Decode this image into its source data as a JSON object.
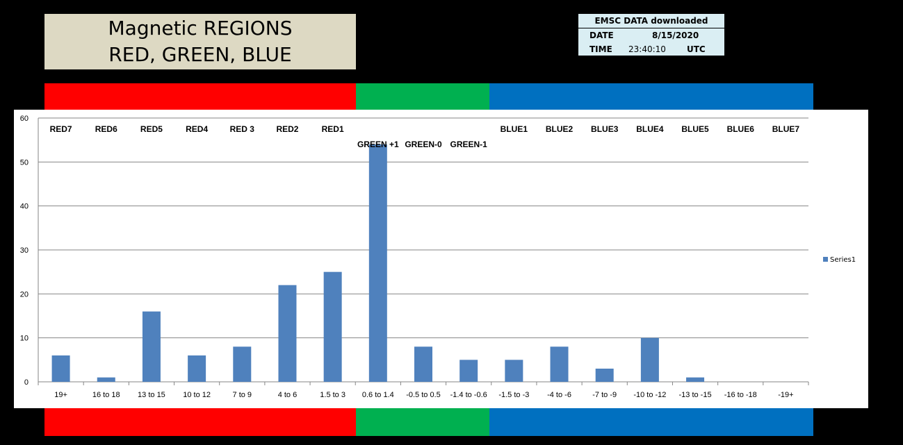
{
  "title": {
    "line1": "Magnetic REGIONS",
    "line2": "RED, GREEN, BLUE"
  },
  "info": {
    "header": "EMSC DATA downloaded",
    "date_label": "DATE",
    "date_value": "8/15/2020",
    "time_label": "TIME",
    "time_value": "23:40:10",
    "time_zone": "UTC"
  },
  "colors": {
    "red": "#FF0000",
    "green": "#00B050",
    "blue": "#0070C0",
    "bar": "#4F81BD"
  },
  "chart_data": {
    "type": "bar",
    "categories": [
      "19+",
      "16 to 18",
      "13 to 15",
      "10 to 12",
      "7 to 9",
      "4 to 6",
      "1.5 to 3",
      "0.6 to 1.4",
      "-0.5 to 0.5",
      "-1.4 to -0.6",
      "-1.5 to -3",
      "-4 to -6",
      "-7 to -9",
      "-10 to -12",
      "-13 to -15",
      "-16 to -18",
      "-19+"
    ],
    "series": [
      {
        "name": "Series1",
        "values": [
          6,
          1,
          16,
          6,
          8,
          22,
          25,
          54,
          8,
          5,
          5,
          8,
          3,
          10,
          1,
          0,
          0
        ]
      }
    ],
    "region_labels": [
      "RED7",
      "RED6",
      "RED5",
      "RED4",
      "RED 3",
      "RED2",
      "RED1",
      "GREEN +1",
      "GREEN-0",
      "GREEN-1",
      "BLUE1",
      "BLUE2",
      "BLUE3",
      "BLUE4",
      "BLUE5",
      "BLUE6",
      "BLUE7"
    ],
    "yticks": [
      "0",
      "10",
      "20",
      "30",
      "40",
      "50",
      "60"
    ],
    "ylim": [
      0,
      60
    ],
    "grid": true,
    "legend": "right"
  }
}
